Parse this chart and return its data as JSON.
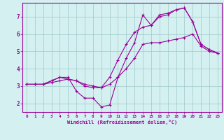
{
  "xlabel": "Windchill (Refroidissement éolien,°C)",
  "bg_color": "#d4f0f0",
  "grid_color": "#a0c8c8",
  "line_color": "#990099",
  "xlim": [
    -0.5,
    23.5
  ],
  "ylim": [
    1.5,
    7.8
  ],
  "yticks": [
    2,
    3,
    4,
    5,
    6,
    7
  ],
  "xticks": [
    0,
    1,
    2,
    3,
    4,
    5,
    6,
    7,
    8,
    9,
    10,
    11,
    12,
    13,
    14,
    15,
    16,
    17,
    18,
    19,
    20,
    21,
    22,
    23
  ],
  "line1_x": [
    0,
    1,
    2,
    3,
    4,
    5,
    6,
    7,
    8,
    9,
    10,
    11,
    12,
    13,
    14,
    15,
    16,
    17,
    18,
    19,
    20,
    21,
    22,
    23
  ],
  "line1_y": [
    3.1,
    3.1,
    3.1,
    3.2,
    3.3,
    3.4,
    3.3,
    3.0,
    2.9,
    2.9,
    3.1,
    3.5,
    4.0,
    4.6,
    5.4,
    5.5,
    5.5,
    5.6,
    5.7,
    5.8,
    6.0,
    5.3,
    5.0,
    4.9
  ],
  "line2_x": [
    0,
    1,
    2,
    3,
    4,
    5,
    6,
    7,
    8,
    9,
    10,
    11,
    12,
    13,
    14,
    15,
    16,
    17,
    18,
    19,
    20,
    21,
    22,
    23
  ],
  "line2_y": [
    3.1,
    3.1,
    3.1,
    3.3,
    3.5,
    3.5,
    2.7,
    2.3,
    2.3,
    1.8,
    1.9,
    3.5,
    4.6,
    5.5,
    7.1,
    6.5,
    7.1,
    7.2,
    7.4,
    7.5,
    6.7,
    5.4,
    5.1,
    4.9
  ],
  "line3_x": [
    0,
    1,
    2,
    3,
    4,
    5,
    6,
    7,
    8,
    9,
    10,
    11,
    12,
    13,
    14,
    15,
    16,
    17,
    18,
    19,
    20,
    21,
    22,
    23
  ],
  "line3_y": [
    3.1,
    3.1,
    3.1,
    3.3,
    3.5,
    3.4,
    3.3,
    3.1,
    3.0,
    2.9,
    3.5,
    4.5,
    5.4,
    6.1,
    6.4,
    6.5,
    7.0,
    7.1,
    7.4,
    7.5,
    6.7,
    5.4,
    5.1,
    4.9
  ]
}
